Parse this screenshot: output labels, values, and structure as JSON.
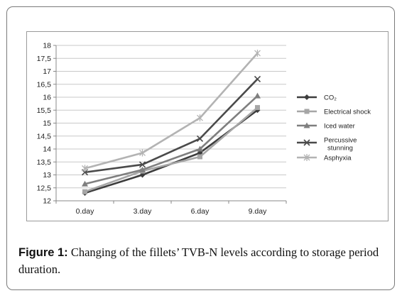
{
  "caption": {
    "label": "Figure 1:",
    "text": "Changing of the fillets’ TVB-N levels according to storage period duration."
  },
  "chart_data": {
    "type": "line",
    "categories": [
      "0.day",
      "3.day",
      "6.day",
      "9.day"
    ],
    "ylim": [
      12,
      18
    ],
    "yticks": [
      "12",
      "12,5",
      "13",
      "13,5",
      "14",
      "14,5",
      "15",
      "15,5",
      "16",
      "16,5",
      "17",
      "17,5",
      "18"
    ],
    "grid": "horizontal",
    "legend_position": "right",
    "series": [
      {
        "name": "CO₂",
        "values": [
          12.3,
          13.0,
          13.85,
          15.5
        ],
        "color": "#3d3d3d",
        "marker": "diamond"
      },
      {
        "name": "Electrical shock",
        "values": [
          12.35,
          13.15,
          13.7,
          15.6
        ],
        "color": "#a6a6a6",
        "marker": "square"
      },
      {
        "name": "Iced water",
        "values": [
          12.65,
          13.2,
          14.0,
          16.05
        ],
        "color": "#7f7f7f",
        "marker": "triangle"
      },
      {
        "name": "Percussive stunning",
        "name_lines": [
          "Percussive",
          "stunning"
        ],
        "values": [
          13.1,
          13.4,
          14.4,
          16.7
        ],
        "color": "#4a4a4a",
        "marker": "x"
      },
      {
        "name": "Asphyxia",
        "values": [
          13.25,
          13.85,
          15.2,
          17.7
        ],
        "color": "#b3b3b3",
        "marker": "star"
      }
    ]
  }
}
